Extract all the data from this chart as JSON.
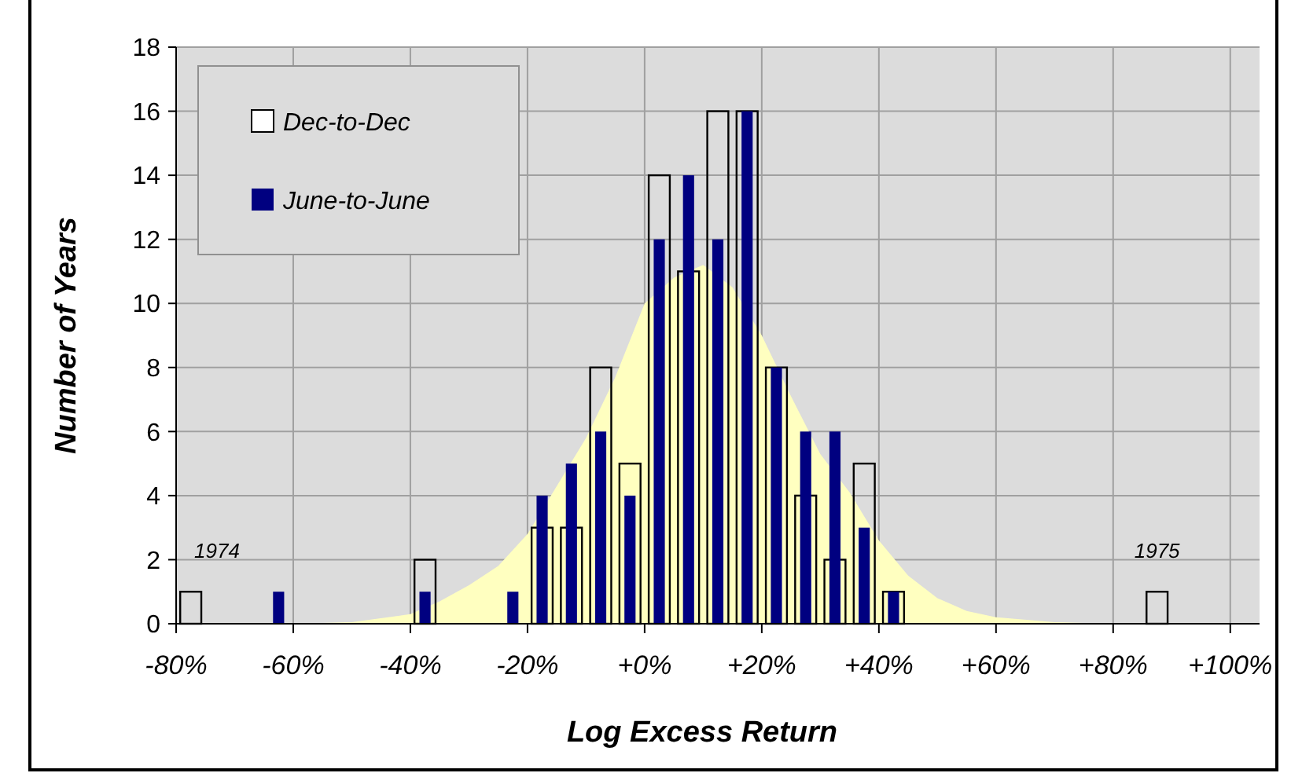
{
  "chart_data": {
    "type": "bar",
    "xlabel": "Log Excess Return",
    "ylabel": "Number of Years",
    "xlim": [
      -80,
      105
    ],
    "xticks": [
      {
        "value": -80,
        "label": "-80%"
      },
      {
        "value": -60,
        "label": "-60%"
      },
      {
        "value": -40,
        "label": "-40%"
      },
      {
        "value": -20,
        "label": "-20%"
      },
      {
        "value": 0,
        "label": "+0%"
      },
      {
        "value": 20,
        "label": "+20%"
      },
      {
        "value": 40,
        "label": "+40%"
      },
      {
        "value": 60,
        "label": "+60%"
      },
      {
        "value": 80,
        "label": "+80%"
      },
      {
        "value": 100,
        "label": "+100%"
      }
    ],
    "ylim": [
      0,
      18
    ],
    "yticks": [
      0,
      2,
      4,
      6,
      8,
      10,
      12,
      14,
      16,
      18
    ],
    "grid": true,
    "legend": "top left",
    "series": [
      {
        "type": "area",
        "color": "#ffffc0",
        "x": [
          -60,
          -50,
          -40,
          -35,
          -30,
          -25,
          -20,
          -15,
          -10,
          -5,
          0,
          5,
          10,
          15,
          20,
          25,
          30,
          35,
          40,
          45,
          50,
          55,
          60,
          70,
          80
        ],
        "values": [
          0,
          0.05,
          0.3,
          0.7,
          1.2,
          1.8,
          2.8,
          4.3,
          5.8,
          7.7,
          10,
          10.8,
          11.2,
          10.5,
          9,
          7.1,
          5.3,
          4.1,
          2.6,
          1.5,
          0.8,
          0.4,
          0.2,
          0.05,
          0
        ]
      },
      {
        "name": "Dec-to-Dec",
        "color": "#000000",
        "x": [
          -77.5,
          -37.5,
          -17.5,
          -12.5,
          -7.5,
          -2.5,
          2.5,
          7.5,
          12.5,
          17.5,
          22.5,
          27.5,
          32.5,
          37.5,
          42.5,
          87.5
        ],
        "values": [
          1,
          2,
          3,
          3,
          8,
          5,
          14,
          11,
          16,
          16,
          8,
          4,
          2,
          5,
          1,
          1
        ]
      },
      {
        "name": "June-to-June",
        "color": "#000080",
        "x": [
          -62.5,
          -37.5,
          -22.5,
          -17.5,
          -12.5,
          -7.5,
          -2.5,
          2.5,
          7.5,
          12.5,
          17.5,
          22.5,
          27.5,
          32.5,
          37.5,
          42.5
        ],
        "values": [
          1,
          1,
          1,
          4,
          5,
          6,
          4,
          12,
          14,
          12,
          16,
          8,
          6,
          6,
          3,
          1
        ]
      }
    ],
    "annotations": [
      {
        "text": "1974",
        "x": -77.5,
        "y": 1
      },
      {
        "text": "1975",
        "x": 87.5,
        "y": 1
      }
    ]
  }
}
